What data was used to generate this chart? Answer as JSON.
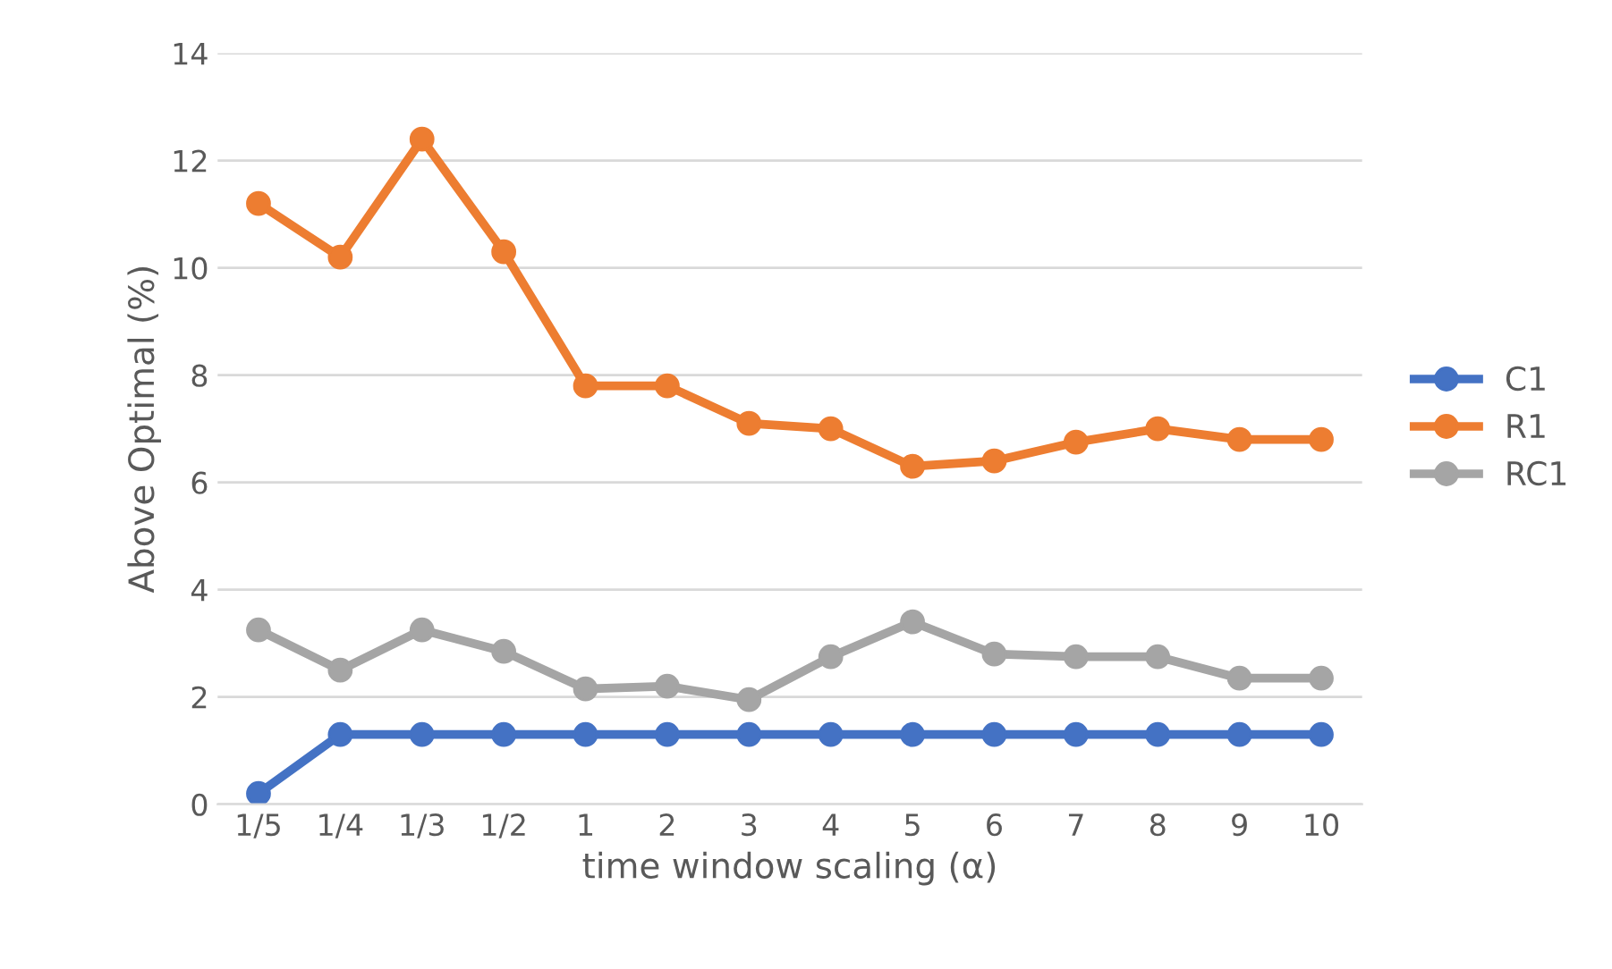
{
  "chart_data": {
    "type": "line",
    "xlabel": "time window scaling (α)",
    "ylabel": "Above Optimal (%)",
    "categories": [
      "1/5",
      "1/4",
      "1/3",
      "1/2",
      "1",
      "2",
      "3",
      "4",
      "5",
      "6",
      "7",
      "8",
      "9",
      "10"
    ],
    "series": [
      {
        "name": "C1",
        "color": "#4472c4",
        "values": [
          0.2,
          1.3,
          1.3,
          1.3,
          1.3,
          1.3,
          1.3,
          1.3,
          1.3,
          1.3,
          1.3,
          1.3,
          1.3,
          1.3
        ]
      },
      {
        "name": "R1",
        "color": "#ed7d31",
        "values": [
          11.2,
          10.2,
          12.4,
          10.3,
          7.8,
          7.8,
          7.1,
          7.0,
          6.3,
          6.4,
          6.75,
          7.0,
          6.8,
          6.8
        ]
      },
      {
        "name": "RC1",
        "color": "#a5a5a5",
        "values": [
          3.25,
          2.5,
          3.25,
          2.85,
          2.15,
          2.2,
          1.95,
          2.75,
          3.4,
          2.8,
          2.75,
          2.75,
          2.35,
          2.35
        ]
      }
    ],
    "ylim": [
      0,
      14
    ],
    "yticks": [
      0,
      2,
      4,
      6,
      8,
      10,
      12,
      14
    ],
    "grid": "y",
    "legend": "right",
    "marker": "circle",
    "line_style": "solid"
  }
}
